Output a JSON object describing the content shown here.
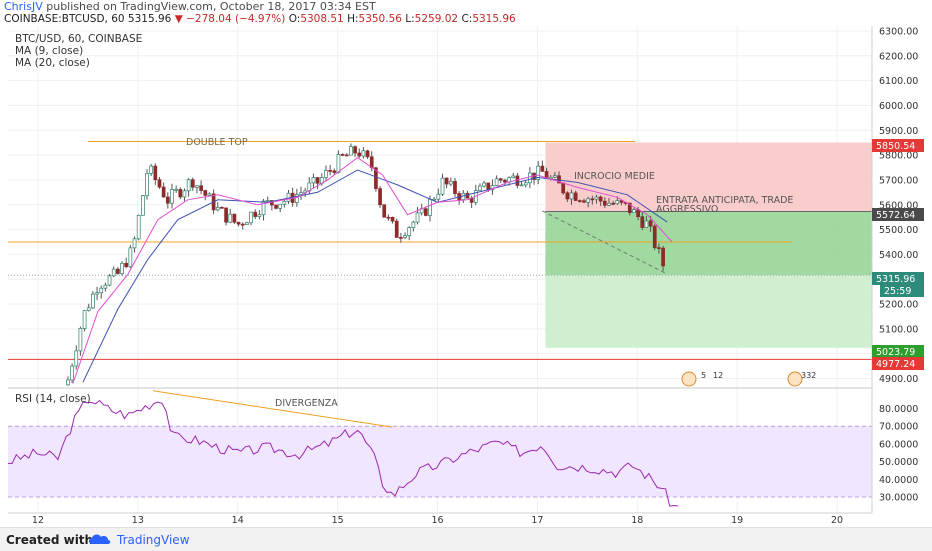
{
  "header": {
    "author": "ChrisJV",
    "published": "published on TradingView.com, October 18, 2017 03:34 EST",
    "symbol": "COINBASE:BTCUSD, 60",
    "last": "5315.96",
    "change": "−278.04 (−4.97%)",
    "open_label": "O:",
    "open": "5308.51",
    "high_label": "H:",
    "high": "5350.56",
    "low_label": "L:",
    "low": "5259.02",
    "close_label": "C:",
    "close": "5315.96"
  },
  "legend": {
    "title": "BTC/USD, 60, COINBASE",
    "ma9": "MA (9, close)",
    "ma20": "MA (20, close)",
    "rsi": "RSI (14, close)"
  },
  "annotations": {
    "double_top": "DOUBLE TOP",
    "incrocio": "INCROCIO MEDIE",
    "entrata1": "ENTRATA ANTICIPATA, TRADE",
    "entrata2": "AGGRESSIVO",
    "divergenza": "DIVERGENZA",
    "event1": "5",
    "event2": "12",
    "event3": "332"
  },
  "price_tags": {
    "red": "5850.54",
    "entry": "5572.64",
    "last": "5315.96",
    "countdown": "25:59",
    "target": "5023.79",
    "stop": "4977.24"
  },
  "colors": {
    "up": "#21a08a",
    "down": "#e0473c",
    "candle_up": "#8e2a2a",
    "ma9": "#e04fd0",
    "ma20": "#3f51b5",
    "orange": "#f0a020",
    "red_line": "#e53935",
    "rsi_line": "#9c27b0",
    "rsi_band": "#f0e6ff",
    "stop_zone": "#f9c4c4",
    "profit_zone": "#8fd48f",
    "profit_zone_light": "#c8ecc8"
  },
  "footer": {
    "created": "Created with",
    "brand": "TradingView"
  },
  "chart_data": [
    {
      "type": "candlestick",
      "title": "BTC/USD, 60, COINBASE",
      "x_ticks": [
        "12",
        "13",
        "14",
        "15",
        "16",
        "17",
        "18",
        "19",
        "20"
      ],
      "y_ticks": [
        "4900.00",
        "5000.00",
        "5100.00",
        "5200.00",
        "5300.00",
        "5400.00",
        "5500.00",
        "5600.00",
        "5700.00",
        "5800.00",
        "5900.00",
        "6000.00",
        "6100.00",
        "6200.00",
        "6300.00"
      ],
      "ylim": [
        4870,
        6320
      ],
      "xlim": [
        11.7,
        20.35
      ],
      "series": [
        {
          "name": "Price",
          "ohlc_approx": [
            {
              "t": 12.3,
              "c": 4895
            },
            {
              "t": 12.45,
              "c": 5150
            },
            {
              "t": 12.6,
              "c": 5280
            },
            {
              "t": 12.8,
              "c": 5320
            },
            {
              "t": 12.95,
              "c": 5420
            },
            {
              "t": 13.1,
              "c": 5750
            },
            {
              "t": 13.3,
              "c": 5620
            },
            {
              "t": 13.55,
              "c": 5700
            },
            {
              "t": 13.8,
              "c": 5580
            },
            {
              "t": 14.0,
              "c": 5520
            },
            {
              "t": 14.25,
              "c": 5600
            },
            {
              "t": 14.5,
              "c": 5620
            },
            {
              "t": 14.8,
              "c": 5690
            },
            {
              "t": 15.05,
              "c": 5790
            },
            {
              "t": 15.2,
              "c": 5820
            },
            {
              "t": 15.35,
              "c": 5750
            },
            {
              "t": 15.45,
              "c": 5570
            },
            {
              "t": 15.6,
              "c": 5480
            },
            {
              "t": 15.85,
              "c": 5560
            },
            {
              "t": 16.05,
              "c": 5690
            },
            {
              "t": 16.3,
              "c": 5620
            },
            {
              "t": 16.6,
              "c": 5700
            },
            {
              "t": 16.85,
              "c": 5710
            },
            {
              "t": 17.05,
              "c": 5730
            },
            {
              "t": 17.3,
              "c": 5650
            },
            {
              "t": 17.6,
              "c": 5620
            },
            {
              "t": 17.9,
              "c": 5590
            },
            {
              "t": 18.1,
              "c": 5520
            },
            {
              "t": 18.3,
              "c": 5316
            }
          ]
        },
        {
          "name": "MA (9, close)",
          "values": [
            {
              "t": 12.35,
              "v": 4880
            },
            {
              "t": 12.6,
              "v": 5170
            },
            {
              "t": 12.9,
              "v": 5320
            },
            {
              "t": 13.2,
              "v": 5540
            },
            {
              "t": 13.5,
              "v": 5620
            },
            {
              "t": 13.8,
              "v": 5640
            },
            {
              "t": 14.2,
              "v": 5600
            },
            {
              "t": 14.6,
              "v": 5630
            },
            {
              "t": 14.9,
              "v": 5700
            },
            {
              "t": 15.2,
              "v": 5790
            },
            {
              "t": 15.45,
              "v": 5720
            },
            {
              "t": 15.7,
              "v": 5560
            },
            {
              "t": 16.0,
              "v": 5610
            },
            {
              "t": 16.3,
              "v": 5620
            },
            {
              "t": 16.7,
              "v": 5690
            },
            {
              "t": 17.0,
              "v": 5720
            },
            {
              "t": 17.4,
              "v": 5670
            },
            {
              "t": 17.8,
              "v": 5630
            },
            {
              "t": 18.1,
              "v": 5560
            },
            {
              "t": 18.35,
              "v": 5450
            }
          ]
        },
        {
          "name": "MA (20, close)",
          "values": [
            {
              "t": 12.45,
              "v": 4885
            },
            {
              "t": 12.8,
              "v": 5180
            },
            {
              "t": 13.1,
              "v": 5380
            },
            {
              "t": 13.4,
              "v": 5540
            },
            {
              "t": 13.8,
              "v": 5620
            },
            {
              "t": 14.3,
              "v": 5610
            },
            {
              "t": 14.8,
              "v": 5650
            },
            {
              "t": 15.2,
              "v": 5740
            },
            {
              "t": 15.6,
              "v": 5680
            },
            {
              "t": 16.0,
              "v": 5610
            },
            {
              "t": 16.5,
              "v": 5660
            },
            {
              "t": 17.0,
              "v": 5710
            },
            {
              "t": 17.4,
              "v": 5690
            },
            {
              "t": 17.9,
              "v": 5640
            },
            {
              "t": 18.3,
              "v": 5530
            }
          ]
        }
      ],
      "levels": [
        {
          "name": "DOUBLE TOP",
          "value": 5855,
          "from": 12.5,
          "to": 17.98
        },
        {
          "name": "support",
          "value": 5450,
          "from": 11.7,
          "to": 19.55
        },
        {
          "name": "stop",
          "value": 4977.24,
          "from": 11.7,
          "to": 20.35
        },
        {
          "name": "entry",
          "value": 5572.64
        },
        {
          "name": "target",
          "value": 5023.79
        }
      ]
    },
    {
      "type": "line",
      "title": "RSI (14, close)",
      "y_ticks": [
        "30.0000",
        "40.0000",
        "50.0000",
        "60.0000",
        "70.0000",
        "80.0000"
      ],
      "ylim": [
        21,
        91
      ],
      "band": [
        30,
        70
      ],
      "series": [
        {
          "name": "RSI (14, close)",
          "values": [
            {
              "t": 11.7,
              "v": 50
            },
            {
              "t": 12.0,
              "v": 55
            },
            {
              "t": 12.2,
              "v": 52
            },
            {
              "t": 12.35,
              "v": 72
            },
            {
              "t": 12.5,
              "v": 86
            },
            {
              "t": 12.7,
              "v": 80
            },
            {
              "t": 12.9,
              "v": 76
            },
            {
              "t": 13.1,
              "v": 82
            },
            {
              "t": 13.25,
              "v": 86
            },
            {
              "t": 13.35,
              "v": 64
            },
            {
              "t": 13.6,
              "v": 62
            },
            {
              "t": 13.8,
              "v": 58
            },
            {
              "t": 14.0,
              "v": 55
            },
            {
              "t": 14.3,
              "v": 58
            },
            {
              "t": 14.6,
              "v": 54
            },
            {
              "t": 14.9,
              "v": 60
            },
            {
              "t": 15.1,
              "v": 66
            },
            {
              "t": 15.2,
              "v": 68
            },
            {
              "t": 15.35,
              "v": 55
            },
            {
              "t": 15.45,
              "v": 38
            },
            {
              "t": 15.55,
              "v": 31
            },
            {
              "t": 15.8,
              "v": 44
            },
            {
              "t": 16.0,
              "v": 48
            },
            {
              "t": 16.3,
              "v": 55
            },
            {
              "t": 16.6,
              "v": 61
            },
            {
              "t": 16.85,
              "v": 55
            },
            {
              "t": 17.05,
              "v": 60
            },
            {
              "t": 17.2,
              "v": 48
            },
            {
              "t": 17.5,
              "v": 47
            },
            {
              "t": 17.8,
              "v": 44
            },
            {
              "t": 17.95,
              "v": 48
            },
            {
              "t": 18.1,
              "v": 42
            },
            {
              "t": 18.25,
              "v": 35
            },
            {
              "t": 18.35,
              "v": 25
            },
            {
              "t": 18.45,
              "v": 24
            }
          ]
        }
      ]
    }
  ]
}
